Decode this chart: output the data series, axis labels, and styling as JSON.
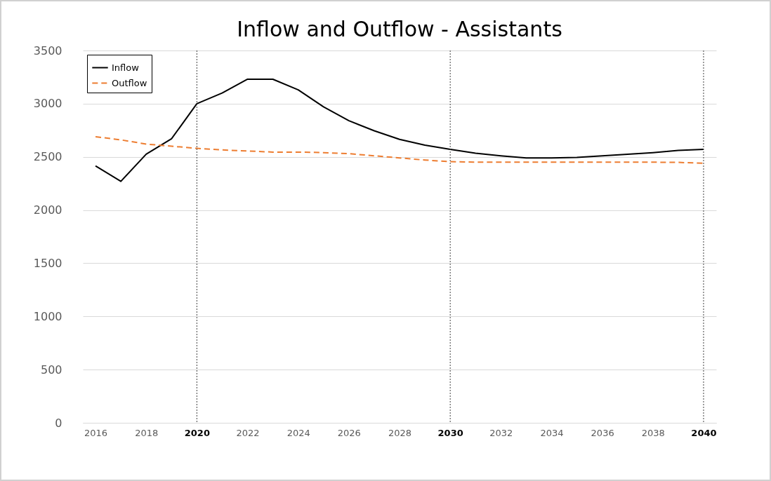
{
  "chart_data": {
    "type": "line",
    "title": "Inflow and Outflow - Assistants",
    "x": [
      2016,
      2017,
      2018,
      2019,
      2020,
      2021,
      2022,
      2023,
      2024,
      2025,
      2026,
      2027,
      2028,
      2029,
      2030,
      2031,
      2032,
      2033,
      2034,
      2035,
      2036,
      2037,
      2038,
      2039,
      2040
    ],
    "series": [
      {
        "name": "Inflow",
        "color": "#000000",
        "line_style": "solid",
        "values": [
          2415,
          2270,
          2525,
          2670,
          3000,
          3100,
          3230,
          3230,
          3130,
          2970,
          2840,
          2745,
          2665,
          2610,
          2570,
          2535,
          2510,
          2490,
          2490,
          2495,
          2510,
          2525,
          2540,
          2560,
          2570
        ]
      },
      {
        "name": "Outflow",
        "color": "#ed7d31",
        "line_style": "dashed",
        "values": [
          2690,
          2660,
          2620,
          2600,
          2580,
          2565,
          2555,
          2545,
          2545,
          2540,
          2530,
          2510,
          2490,
          2470,
          2455,
          2450,
          2450,
          2450,
          2450,
          2450,
          2450,
          2450,
          2450,
          2448,
          2440
        ]
      }
    ],
    "xlim": [
      2015.5,
      2040.5
    ],
    "xticks": [
      2016,
      2018,
      2020,
      2022,
      2024,
      2026,
      2028,
      2030,
      2032,
      2034,
      2036,
      2038,
      2040
    ],
    "ylim": [
      0,
      3500
    ],
    "yticks": [
      0,
      500,
      1000,
      1500,
      2000,
      2500,
      3000,
      3500
    ],
    "ref_lines": [
      {
        "axis": "x",
        "value": 2020,
        "color": "#404040",
        "line_style": "dotted"
      },
      {
        "axis": "x",
        "value": 2030,
        "color": "#404040",
        "line_style": "dotted"
      },
      {
        "axis": "x",
        "value": 2040,
        "color": "#404040",
        "line_style": "dotted"
      }
    ],
    "grid": "y",
    "legend": "top left"
  }
}
